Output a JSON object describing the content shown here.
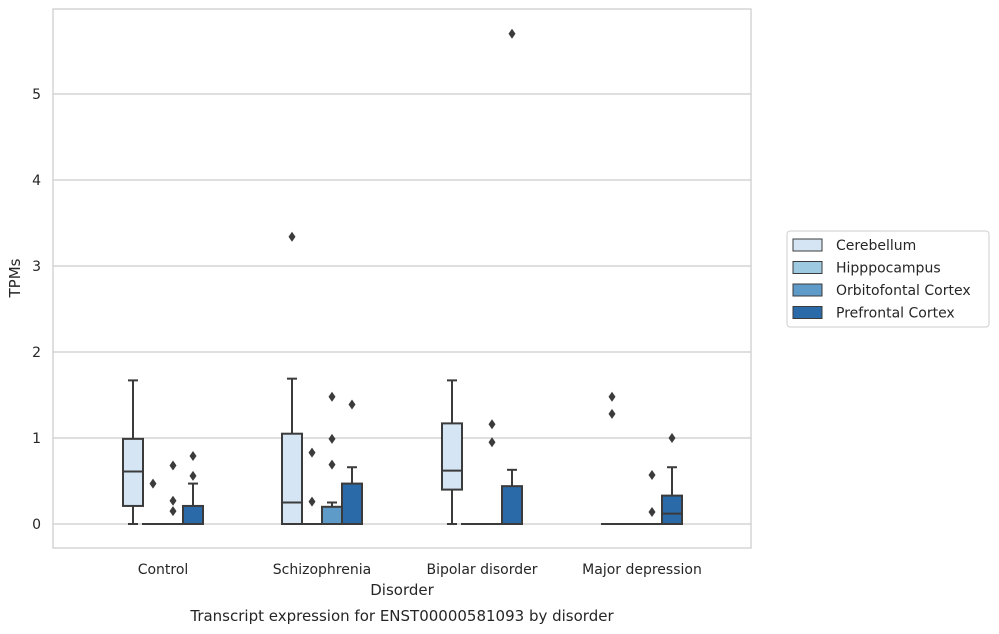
{
  "chart_data": {
    "type": "box",
    "title": "Transcript expression for ENST00000581093 by disorder",
    "xlabel": "Disorder",
    "ylabel": "TPMs",
    "ylim": [
      -0.28,
      6.0
    ],
    "yticks": [
      0,
      1,
      2,
      3,
      4,
      5
    ],
    "grid": "horizontal",
    "legend_position": "right",
    "categories": [
      "Control",
      "Schizophrenia",
      "Bipolar disorder",
      "Major depression"
    ],
    "series": [
      {
        "name": "Cerebellum",
        "color": "#d6e5f4",
        "boxes": [
          {
            "whislo": 0.0,
            "q1": 0.21,
            "med": 0.61,
            "q3": 0.99,
            "whishi": 1.67,
            "fliers": []
          },
          {
            "whislo": 0.0,
            "q1": 0.0,
            "med": 0.25,
            "q3": 1.05,
            "whishi": 1.69,
            "fliers": [
              3.34
            ]
          },
          {
            "whislo": 0.0,
            "q1": 0.4,
            "med": 0.62,
            "q3": 1.17,
            "whishi": 1.67,
            "fliers": []
          },
          {
            "whislo": 0.0,
            "q1": 0.0,
            "med": 0.0,
            "q3": 0.0,
            "whishi": 0.0,
            "fliers": [
              1.48,
              1.28
            ]
          }
        ]
      },
      {
        "name": "Hipppocampus",
        "color": "#9ecae1",
        "boxes": [
          {
            "whislo": 0.0,
            "q1": 0.0,
            "med": 0.0,
            "q3": 0.0,
            "whishi": 0.0,
            "fliers": [
              0.47
            ]
          },
          {
            "whislo": 0.0,
            "q1": 0.0,
            "med": 0.0,
            "q3": 0.0,
            "whishi": 0.0,
            "fliers": [
              0.83,
              0.26
            ]
          },
          {
            "whislo": 0.0,
            "q1": 0.0,
            "med": 0.0,
            "q3": 0.0,
            "whishi": 0.0,
            "fliers": []
          },
          {
            "whislo": 0.0,
            "q1": 0.0,
            "med": 0.0,
            "q3": 0.0,
            "whishi": 0.0,
            "fliers": []
          }
        ]
      },
      {
        "name": "Orbitofontal Cortex",
        "color": "#5e9bc9",
        "boxes": [
          {
            "whislo": 0.0,
            "q1": 0.0,
            "med": 0.0,
            "q3": 0.0,
            "whishi": 0.0,
            "fliers": [
              0.68,
              0.27,
              0.15
            ]
          },
          {
            "whislo": 0.0,
            "q1": 0.0,
            "med": 0.0,
            "q3": 0.2,
            "whishi": 0.25,
            "fliers": [
              1.48,
              0.99,
              0.69
            ]
          },
          {
            "whislo": 0.0,
            "q1": 0.0,
            "med": 0.0,
            "q3": 0.0,
            "whishi": 0.0,
            "fliers": [
              1.16,
              0.95
            ]
          },
          {
            "whislo": 0.0,
            "q1": 0.0,
            "med": 0.0,
            "q3": 0.0,
            "whishi": 0.0,
            "fliers": [
              0.57,
              0.14
            ]
          }
        ]
      },
      {
        "name": "Prefrontal Cortex",
        "color": "#2a6aa8",
        "boxes": [
          {
            "whislo": 0.0,
            "q1": 0.0,
            "med": 0.0,
            "q3": 0.21,
            "whishi": 0.47,
            "fliers": [
              0.79,
              0.56
            ]
          },
          {
            "whislo": 0.0,
            "q1": 0.0,
            "med": 0.0,
            "q3": 0.47,
            "whishi": 0.66,
            "fliers": [
              1.39
            ]
          },
          {
            "whislo": 0.0,
            "q1": 0.0,
            "med": 0.0,
            "q3": 0.44,
            "whishi": 0.63,
            "fliers": [
              5.7
            ]
          },
          {
            "whislo": 0.0,
            "q1": 0.0,
            "med": 0.12,
            "q3": 0.33,
            "whishi": 0.66,
            "fliers": [
              1.0
            ]
          }
        ]
      }
    ]
  }
}
